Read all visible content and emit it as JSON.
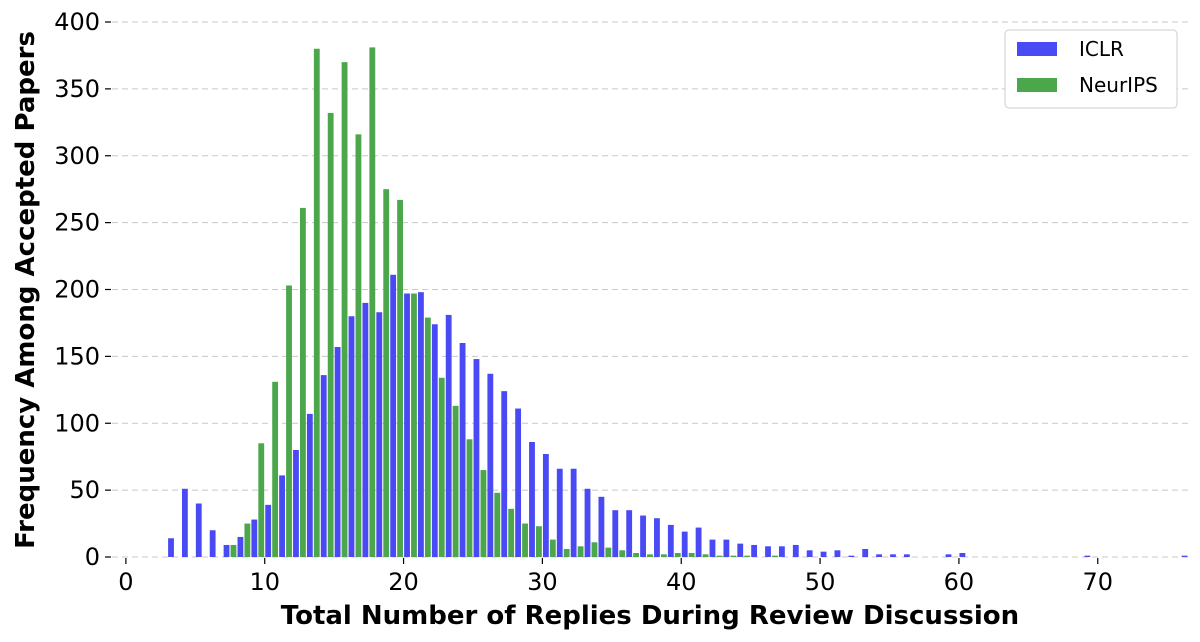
{
  "chart_data": {
    "type": "bar",
    "xlabel": "Total Number of Replies During Review Discussion",
    "ylabel": "Frequency Among Accepted Papers",
    "xlim": [
      -1,
      76.5
    ],
    "ylim": [
      0,
      400
    ],
    "xticks": [
      0,
      10,
      20,
      30,
      40,
      50,
      60,
      70
    ],
    "yticks": [
      0,
      50,
      100,
      150,
      200,
      250,
      300,
      350,
      400
    ],
    "grid": "horizontal dashed",
    "legend_position": "top-right",
    "colors": {
      "ICLR": "#4a4af5",
      "NeurIPS": "#4ca64c"
    },
    "series": [
      {
        "name": "ICLR",
        "x": [
          3,
          4,
          5,
          6,
          7,
          8,
          9,
          10,
          11,
          12,
          13,
          14,
          15,
          16,
          17,
          18,
          19,
          20,
          21,
          22,
          23,
          24,
          25,
          26,
          27,
          28,
          29,
          30,
          31,
          32,
          33,
          34,
          35,
          36,
          37,
          38,
          39,
          40,
          41,
          42,
          43,
          44,
          45,
          46,
          47,
          48,
          49,
          50,
          51,
          52,
          53,
          54,
          55,
          56,
          57,
          58,
          59,
          60,
          61,
          62,
          63,
          64,
          65,
          66,
          67,
          68,
          69,
          70,
          71,
          72,
          73,
          74,
          75,
          76
        ],
        "values": [
          14,
          51,
          40,
          20,
          9,
          15,
          28,
          39,
          61,
          80,
          107,
          136,
          157,
          180,
          190,
          183,
          211,
          197,
          198,
          174,
          181,
          160,
          148,
          137,
          124,
          111,
          86,
          77,
          66,
          66,
          51,
          45,
          35,
          35,
          31,
          29,
          24,
          19,
          22,
          13,
          13,
          10,
          9,
          8,
          8,
          9,
          5,
          4,
          5,
          1,
          6,
          2,
          2,
          2,
          0,
          0,
          2,
          3,
          0,
          0,
          0,
          0,
          0,
          0,
          0,
          0,
          1,
          0,
          0,
          0,
          0,
          0,
          0,
          1
        ]
      },
      {
        "name": "NeurIPS",
        "x": [
          3,
          4,
          5,
          6,
          7,
          8,
          9,
          10,
          11,
          12,
          13,
          14,
          15,
          16,
          17,
          18,
          19,
          20,
          21,
          22,
          23,
          24,
          25,
          26,
          27,
          28,
          29,
          30,
          31,
          32,
          33,
          34,
          35,
          36,
          37,
          38,
          39,
          40,
          41,
          42,
          43,
          44,
          45,
          46,
          47,
          48,
          49,
          50,
          51,
          52,
          53,
          54,
          55,
          56,
          57,
          58,
          59,
          60,
          61,
          62,
          63,
          64,
          65,
          66,
          67,
          68,
          69,
          70,
          71,
          72,
          73,
          74,
          75,
          76
        ],
        "values": [
          0,
          0,
          0,
          0,
          0,
          9,
          25,
          85,
          131,
          203,
          261,
          380,
          332,
          370,
          316,
          381,
          275,
          267,
          197,
          179,
          134,
          113,
          88,
          65,
          48,
          36,
          25,
          23,
          13,
          6,
          8,
          11,
          7,
          5,
          3,
          2,
          2,
          3,
          3,
          2,
          1,
          1,
          1,
          0,
          1,
          0,
          0,
          0,
          0,
          0,
          0,
          0,
          0,
          0,
          0,
          0,
          0,
          0,
          0,
          0,
          0,
          0,
          0,
          0,
          0,
          0,
          0,
          0,
          0,
          0,
          0,
          0,
          0,
          0
        ]
      }
    ]
  }
}
